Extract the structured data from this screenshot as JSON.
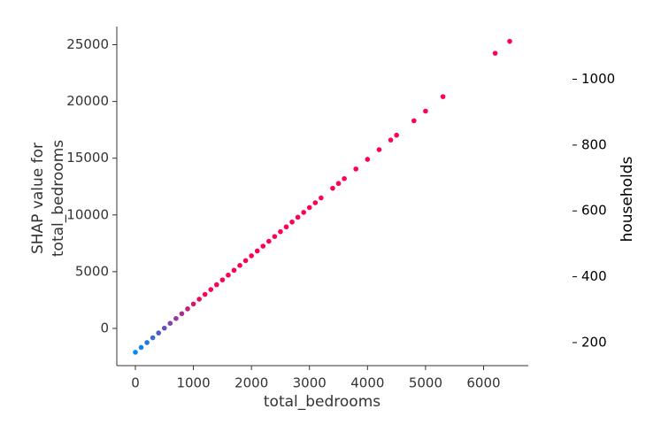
{
  "chart_data": {
    "type": "scatter",
    "xlabel": "total_bedrooms",
    "ylabel": [
      "SHAP value for",
      "total_bedrooms"
    ],
    "xlim": [
      -320,
      6770
    ],
    "xticks": [
      0,
      1000,
      2000,
      3000,
      4000,
      5000,
      6000
    ],
    "ylim": [
      -3280,
      26600
    ],
    "yticks": [
      0,
      5000,
      10000,
      15000,
      20000,
      25000
    ],
    "colorbar": {
      "label": "households",
      "lim": [
        130,
        1160
      ],
      "ticks": [
        200,
        400,
        600,
        800,
        1000
      ],
      "colors": [
        "#008afb",
        "#ff0052"
      ]
    },
    "x": [
      0,
      100,
      200,
      300,
      400,
      500,
      600,
      700,
      800,
      900,
      1000,
      1100,
      1200,
      1300,
      1400,
      1500,
      1600,
      1700,
      1800,
      1900,
      2000,
      2100,
      2200,
      2300,
      2400,
      2500,
      2600,
      2700,
      2800,
      2900,
      3000,
      3100,
      3200,
      3400,
      3500,
      3600,
      3800,
      4000,
      4200,
      4400,
      4500,
      4800,
      5000,
      5300,
      6200,
      6450
    ],
    "values": [
      -2100,
      -1675,
      -1250,
      -825,
      -400,
      25,
      450,
      875,
      1300,
      1725,
      2150,
      2575,
      3000,
      3425,
      3850,
      4275,
      4700,
      5125,
      5550,
      5975,
      6400,
      6825,
      7250,
      7675,
      8100,
      8525,
      8950,
      9375,
      9800,
      10225,
      10650,
      11075,
      11500,
      12350,
      12775,
      13200,
      14050,
      14900,
      15750,
      16600,
      17025,
      18300,
      19150,
      20425,
      24250,
      25300
    ],
    "color_values": [
      100,
      190,
      280,
      370,
      460,
      550,
      640,
      730,
      820,
      910,
      1000,
      1090,
      1180,
      1270,
      1360,
      1450,
      1540,
      1630,
      1720,
      1810,
      1900,
      1990,
      2080,
      2170,
      2260,
      2350,
      2440,
      2530,
      2620,
      2710,
      2800,
      2890,
      2980,
      3160,
      3250,
      3340,
      3520,
      3700,
      3880,
      4060,
      4150,
      4420,
      4600,
      4870,
      5680,
      5905
    ]
  }
}
